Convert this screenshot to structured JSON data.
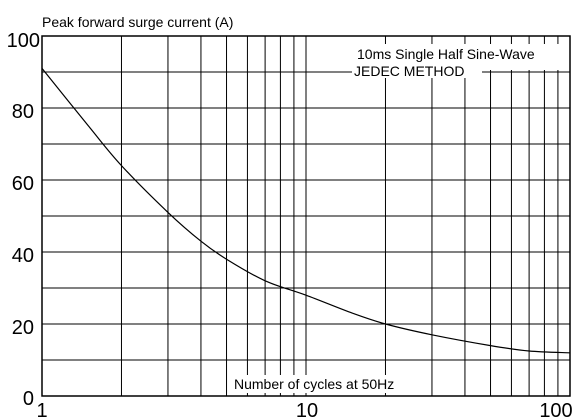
{
  "chart_data": {
    "type": "line",
    "title": "Peak forward surge current (A)",
    "xlabel": "Number of cycles at 50Hz",
    "ylabel": "",
    "x_scale": "log",
    "xlim": [
      1,
      100
    ],
    "ylim": [
      0,
      100
    ],
    "x_tick_labels": [
      "1",
      "10",
      "100"
    ],
    "y_tick_labels": [
      "0",
      "20",
      "40",
      "60",
      "80",
      "100"
    ],
    "grid": true,
    "annotations": [
      "10ms Single Half Sine-Wave",
      "JEDEC METHOD"
    ],
    "series": [
      {
        "x": [
          1,
          1.5,
          2,
          3,
          4,
          5,
          7,
          10,
          15,
          20,
          30,
          50,
          70,
          100
        ],
        "y": [
          91,
          75,
          64,
          51,
          43,
          38,
          32,
          28,
          23,
          20,
          17,
          14,
          12.5,
          12
        ]
      }
    ]
  }
}
